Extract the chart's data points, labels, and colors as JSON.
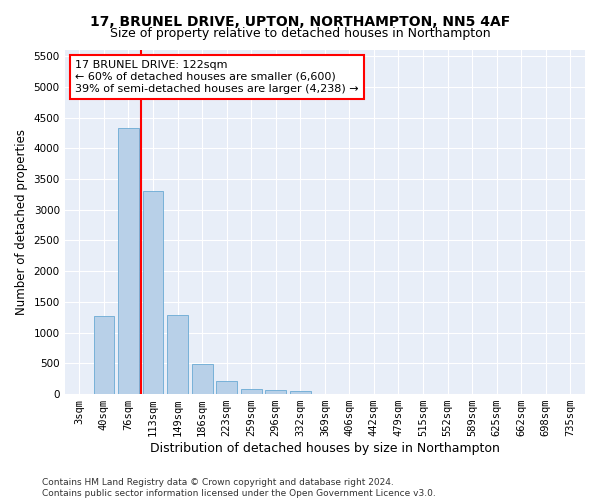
{
  "title": "17, BRUNEL DRIVE, UPTON, NORTHAMPTON, NN5 4AF",
  "subtitle": "Size of property relative to detached houses in Northampton",
  "xlabel": "Distribution of detached houses by size in Northampton",
  "ylabel": "Number of detached properties",
  "categories": [
    "3sqm",
    "40sqm",
    "76sqm",
    "113sqm",
    "149sqm",
    "186sqm",
    "223sqm",
    "259sqm",
    "296sqm",
    "332sqm",
    "369sqm",
    "406sqm",
    "442sqm",
    "479sqm",
    "515sqm",
    "552sqm",
    "589sqm",
    "625sqm",
    "662sqm",
    "698sqm",
    "735sqm"
  ],
  "values": [
    0,
    1270,
    4330,
    3300,
    1280,
    490,
    210,
    85,
    65,
    55,
    0,
    0,
    0,
    0,
    0,
    0,
    0,
    0,
    0,
    0,
    0
  ],
  "bar_color": "#b8d0e8",
  "bar_edgecolor": "#6aaad4",
  "vline_x": 2.5,
  "vline_color": "red",
  "annotation_text": "17 BRUNEL DRIVE: 122sqm\n← 60% of detached houses are smaller (6,600)\n39% of semi-detached houses are larger (4,238) →",
  "annotation_box_color": "white",
  "annotation_box_edgecolor": "red",
  "ylim": [
    0,
    5600
  ],
  "yticks": [
    0,
    500,
    1000,
    1500,
    2000,
    2500,
    3000,
    3500,
    4000,
    4500,
    5000,
    5500
  ],
  "bg_color": "#ffffff",
  "plot_bg_color": "#e8eef8",
  "footer": "Contains HM Land Registry data © Crown copyright and database right 2024.\nContains public sector information licensed under the Open Government Licence v3.0.",
  "title_fontsize": 10,
  "subtitle_fontsize": 9,
  "xlabel_fontsize": 9,
  "ylabel_fontsize": 8.5,
  "tick_fontsize": 7.5,
  "footer_fontsize": 6.5,
  "annot_fontsize": 8
}
